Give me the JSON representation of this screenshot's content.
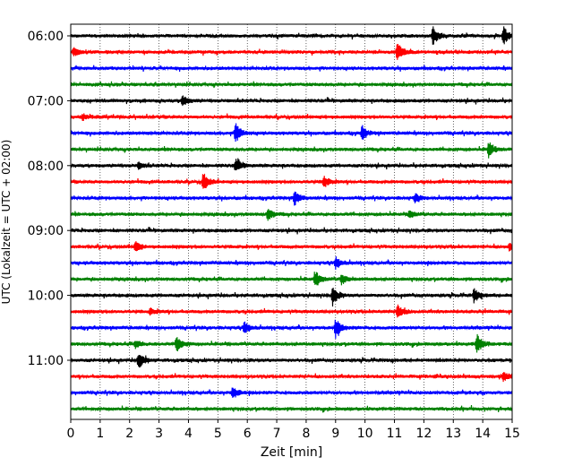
{
  "chart_data": {
    "type": "line",
    "xlabel": "Zeit  [min]",
    "ylabel": "UTC (Lokalzeit = UTC + 02:00)",
    "xlim": [
      0,
      15
    ],
    "x_ticks": [
      "0",
      "1",
      "2",
      "3",
      "4",
      "5",
      "6",
      "7",
      "8",
      "9",
      "10",
      "11",
      "12",
      "13",
      "14",
      "15"
    ],
    "y_ticks": [
      "06:00",
      "07:00",
      "08:00",
      "09:00",
      "10:00",
      "11:00"
    ],
    "grid": "vertical dotted",
    "colors": [
      "#000000",
      "#ff0000",
      "#0000ff",
      "#008000"
    ],
    "trace_interval_min": 15,
    "traces": [
      {
        "start": "06:00",
        "color": "#000000",
        "events": [
          {
            "t": 12.3,
            "amp": 1.0
          },
          {
            "t": 14.7,
            "amp": 0.9
          }
        ]
      },
      {
        "start": "06:15",
        "color": "#ff0000",
        "events": [
          {
            "t": 11.1,
            "amp": 1.0
          },
          {
            "t": 0.1,
            "amp": 0.4
          }
        ]
      },
      {
        "start": "06:30",
        "color": "#0000ff",
        "events": []
      },
      {
        "start": "06:45",
        "color": "#008000",
        "events": []
      },
      {
        "start": "07:00",
        "color": "#000000",
        "events": [
          {
            "t": 3.8,
            "amp": 0.5
          }
        ]
      },
      {
        "start": "07:15",
        "color": "#ff0000",
        "events": [
          {
            "t": 0.4,
            "amp": 0.3
          }
        ]
      },
      {
        "start": "07:30",
        "color": "#0000ff",
        "events": [
          {
            "t": 5.6,
            "amp": 1.0
          },
          {
            "t": 9.9,
            "amp": 0.7
          }
        ]
      },
      {
        "start": "07:45",
        "color": "#008000",
        "events": [
          {
            "t": 14.2,
            "amp": 0.8
          }
        ]
      },
      {
        "start": "08:00",
        "color": "#000000",
        "events": [
          {
            "t": 5.6,
            "amp": 0.7
          },
          {
            "t": 2.3,
            "amp": 0.3
          }
        ]
      },
      {
        "start": "08:15",
        "color": "#ff0000",
        "events": [
          {
            "t": 4.5,
            "amp": 0.9
          },
          {
            "t": 8.6,
            "amp": 0.6
          }
        ]
      },
      {
        "start": "08:30",
        "color": "#0000ff",
        "events": [
          {
            "t": 7.6,
            "amp": 0.7
          },
          {
            "t": 11.7,
            "amp": 0.4
          }
        ]
      },
      {
        "start": "08:45",
        "color": "#008000",
        "events": [
          {
            "t": 6.7,
            "amp": 0.7
          },
          {
            "t": 11.5,
            "amp": 0.4
          }
        ]
      },
      {
        "start": "09:00",
        "color": "#000000",
        "events": []
      },
      {
        "start": "09:15",
        "color": "#ff0000",
        "events": [
          {
            "t": 2.2,
            "amp": 0.5
          },
          {
            "t": 14.9,
            "amp": 0.4
          }
        ]
      },
      {
        "start": "09:30",
        "color": "#0000ff",
        "events": [
          {
            "t": 9.0,
            "amp": 0.6
          }
        ]
      },
      {
        "start": "09:45",
        "color": "#008000",
        "events": [
          {
            "t": 8.3,
            "amp": 0.9
          },
          {
            "t": 9.2,
            "amp": 0.5
          }
        ]
      },
      {
        "start": "10:00",
        "color": "#000000",
        "events": [
          {
            "t": 8.9,
            "amp": 1.0
          },
          {
            "t": 13.7,
            "amp": 0.7
          }
        ]
      },
      {
        "start": "10:15",
        "color": "#ff0000",
        "events": [
          {
            "t": 11.1,
            "amp": 0.7
          },
          {
            "t": 2.7,
            "amp": 0.3
          }
        ]
      },
      {
        "start": "10:30",
        "color": "#0000ff",
        "events": [
          {
            "t": 9.0,
            "amp": 1.0
          },
          {
            "t": 5.9,
            "amp": 0.6
          }
        ]
      },
      {
        "start": "10:45",
        "color": "#008000",
        "events": [
          {
            "t": 3.6,
            "amp": 0.8
          },
          {
            "t": 13.8,
            "amp": 1.0
          },
          {
            "t": 2.2,
            "amp": 0.4
          }
        ]
      },
      {
        "start": "11:00",
        "color": "#000000",
        "events": [
          {
            "t": 2.3,
            "amp": 0.9
          }
        ]
      },
      {
        "start": "11:15",
        "color": "#ff0000",
        "events": [
          {
            "t": 14.7,
            "amp": 0.4
          }
        ]
      },
      {
        "start": "11:30",
        "color": "#0000ff",
        "events": [
          {
            "t": 5.5,
            "amp": 0.6
          }
        ]
      },
      {
        "start": "11:45",
        "color": "#008000",
        "events": []
      }
    ]
  }
}
